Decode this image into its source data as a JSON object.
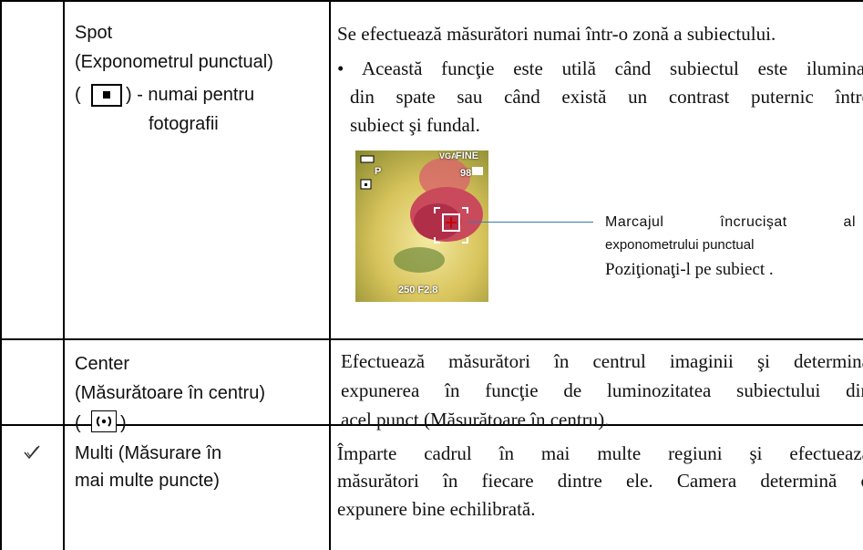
{
  "rows": [
    {
      "setting": [
        "Spot",
        "(Exponometrul punctual)",
        "(",
        ") - numai pentru",
        "fotografii"
      ],
      "description": [
        "Se efectuează măsurători numai într-o zonă a subiectului.",
        "• Această funcţie este utilă când subiectul este iluminat",
        "din spate sau când există un contrast puternic între",
        "subiect şi fundal."
      ]
    },
    {
      "setting": [
        "Center",
        "(Măsurătoare în centru)",
        "(",
        ")"
      ],
      "description": [
        "Efectuează măsurători în centrul imaginii şi determină",
        "expunerea în funcţie de luminozitatea subiectului din",
        "acel punct (Măsurătoare în centru)."
      ]
    },
    {
      "setting": [
        "Multi (Măsurare în",
        "mai multe puncte)"
      ],
      "description": [
        "Împarte cadrul în mai multe regiuni şi efectuează",
        "măsurători în fiecare dintre ele. Camera determină o",
        "expunere bine echilibrată."
      ]
    }
  ],
  "photo": {
    "mode": "P",
    "size": "VGA",
    "quality": "FINE",
    "count": "98",
    "exposure": "250  F2.8"
  },
  "callout": [
    "Marcajul încrucişat al",
    "exponometrului punctual",
    "Poziţionaţi-l pe subiect ."
  ]
}
